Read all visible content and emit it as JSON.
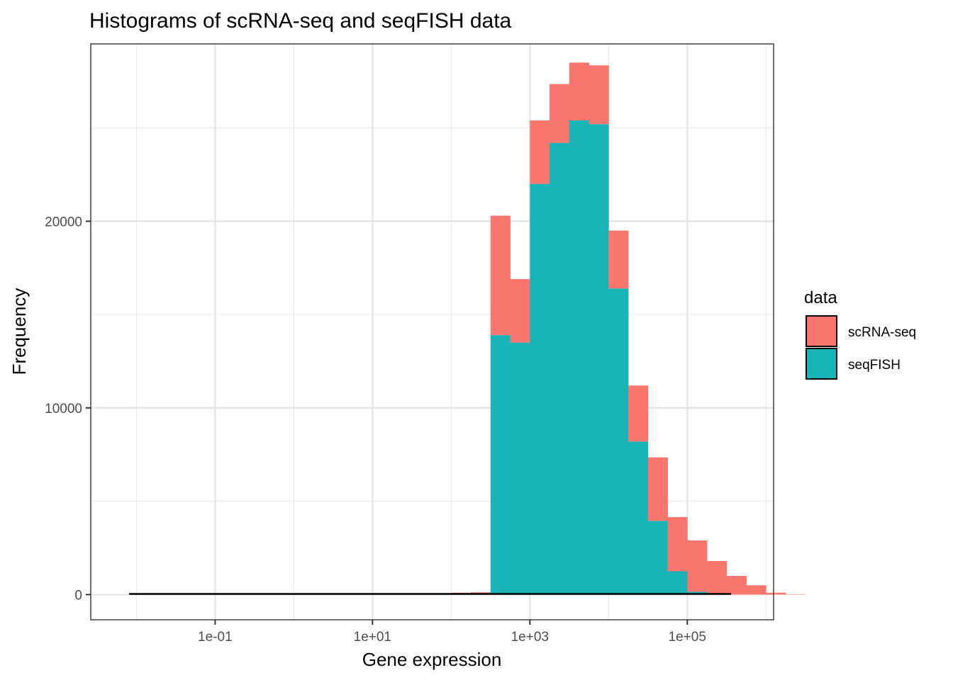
{
  "chart_data": {
    "type": "bar",
    "subtype": "stacked-histogram",
    "title": "Histograms of scRNA-seq and seqFISH data",
    "xlabel": "Gene expression",
    "ylabel": "Frequency",
    "x_scale": "log10",
    "x_ticks": [
      {
        "value": 0.1,
        "label": "1e-01"
      },
      {
        "value": 10,
        "label": "1e+01"
      },
      {
        "value": 1000,
        "label": "1e+03"
      },
      {
        "value": 100000,
        "label": "1e+05"
      }
    ],
    "y_ticks": [
      {
        "value": 0,
        "label": "0"
      },
      {
        "value": 10000,
        "label": "10000"
      },
      {
        "value": 20000,
        "label": "20000"
      }
    ],
    "xlim": [
      0.00263,
      1250000
    ],
    "ylim": [
      -1350,
      29500
    ],
    "grid": true,
    "legend": {
      "title": "data",
      "position": "right"
    },
    "bins": {
      "log10_start": -2,
      "log10_width": 0.25,
      "count": 36
    },
    "series": [
      {
        "name": "scRNA-seq",
        "color": "#F8766D",
        "values": [
          0,
          0,
          0,
          0,
          0,
          0,
          0,
          0,
          0,
          0,
          0,
          0,
          0,
          0,
          0,
          50,
          100,
          120,
          6400,
          3400,
          3400,
          3150,
          3100,
          3150,
          3100,
          3000,
          3400,
          2900,
          2750,
          1800,
          1000,
          500,
          100,
          20,
          0,
          0
        ]
      },
      {
        "name": "seqFISH",
        "color": "#19B4B7",
        "values": [
          0,
          0,
          0,
          0,
          0,
          0,
          0,
          0,
          0,
          0,
          0,
          0,
          0,
          0,
          0,
          0,
          0,
          0,
          13900,
          13500,
          22000,
          24200,
          25400,
          25200,
          16400,
          8200,
          3950,
          1250,
          150,
          0,
          0,
          0,
          0,
          0,
          0,
          0
        ]
      }
    ]
  }
}
